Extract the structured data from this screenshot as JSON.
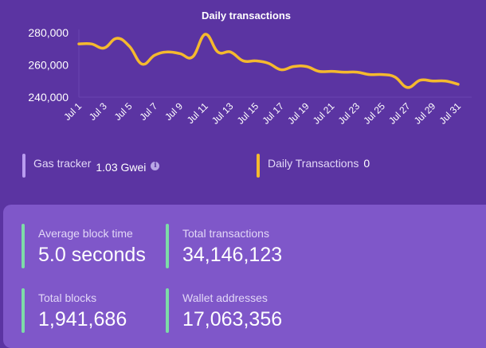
{
  "chart_data": {
    "type": "line",
    "title": "Daily transactions",
    "xlabel": "",
    "ylabel": "",
    "ylim": [
      240000,
      280000
    ],
    "yticks": [
      "240,000",
      "260,000",
      "280,000"
    ],
    "ytick_values": [
      240000,
      260000,
      280000
    ],
    "xtick_labels": [
      "Jul 1",
      "Jul 3",
      "Jul 5",
      "Jul 7",
      "Jul 9",
      "Jul 11",
      "Jul 13",
      "Jul 15",
      "Jul 17",
      "Jul 19",
      "Jul 21",
      "Jul 23",
      "Jul 25",
      "Jul 27",
      "Jul 29",
      "Jul 31"
    ],
    "grid": false,
    "categories": [
      "Jul 1",
      "Jul 2",
      "Jul 3",
      "Jul 4",
      "Jul 5",
      "Jul 6",
      "Jul 7",
      "Jul 8",
      "Jul 9",
      "Jul 10",
      "Jul 11",
      "Jul 12",
      "Jul 13",
      "Jul 14",
      "Jul 15",
      "Jul 16",
      "Jul 17",
      "Jul 18",
      "Jul 19",
      "Jul 20",
      "Jul 21",
      "Jul 22",
      "Jul 23",
      "Jul 24",
      "Jul 25",
      "Jul 26",
      "Jul 27",
      "Jul 28",
      "Jul 29",
      "Jul 30",
      "Jul 31"
    ],
    "series": [
      {
        "name": "Daily Transactions",
        "color": "#f5b92e",
        "values": [
          273000,
          273000,
          270500,
          276500,
          271500,
          260500,
          266000,
          268000,
          267000,
          265000,
          279000,
          268000,
          268000,
          262500,
          262500,
          261000,
          257000,
          259000,
          259000,
          256000,
          256000,
          255500,
          255500,
          254000,
          254000,
          252500,
          246000,
          250500,
          250000,
          250000,
          248000
        ]
      }
    ]
  },
  "legend": {
    "gas": {
      "label": "Gas tracker",
      "value": "1.03 Gwei",
      "icon": "info-icon",
      "color": "#b99cf0"
    },
    "daily": {
      "label": "Daily Transactions",
      "value": "0",
      "color": "#f5b92e"
    }
  },
  "stats": [
    {
      "label": "Average block time",
      "value": "5.0 seconds"
    },
    {
      "label": "Total transactions",
      "value": "34,146,123"
    },
    {
      "label": "Total blocks",
      "value": "1,941,686"
    },
    {
      "label": "Wallet addresses",
      "value": "17,063,356"
    }
  ],
  "colors": {
    "background": "#5b34a2",
    "card": "#7f57c9",
    "stat_accent": "#7ddba8",
    "line": "#f5b92e"
  }
}
